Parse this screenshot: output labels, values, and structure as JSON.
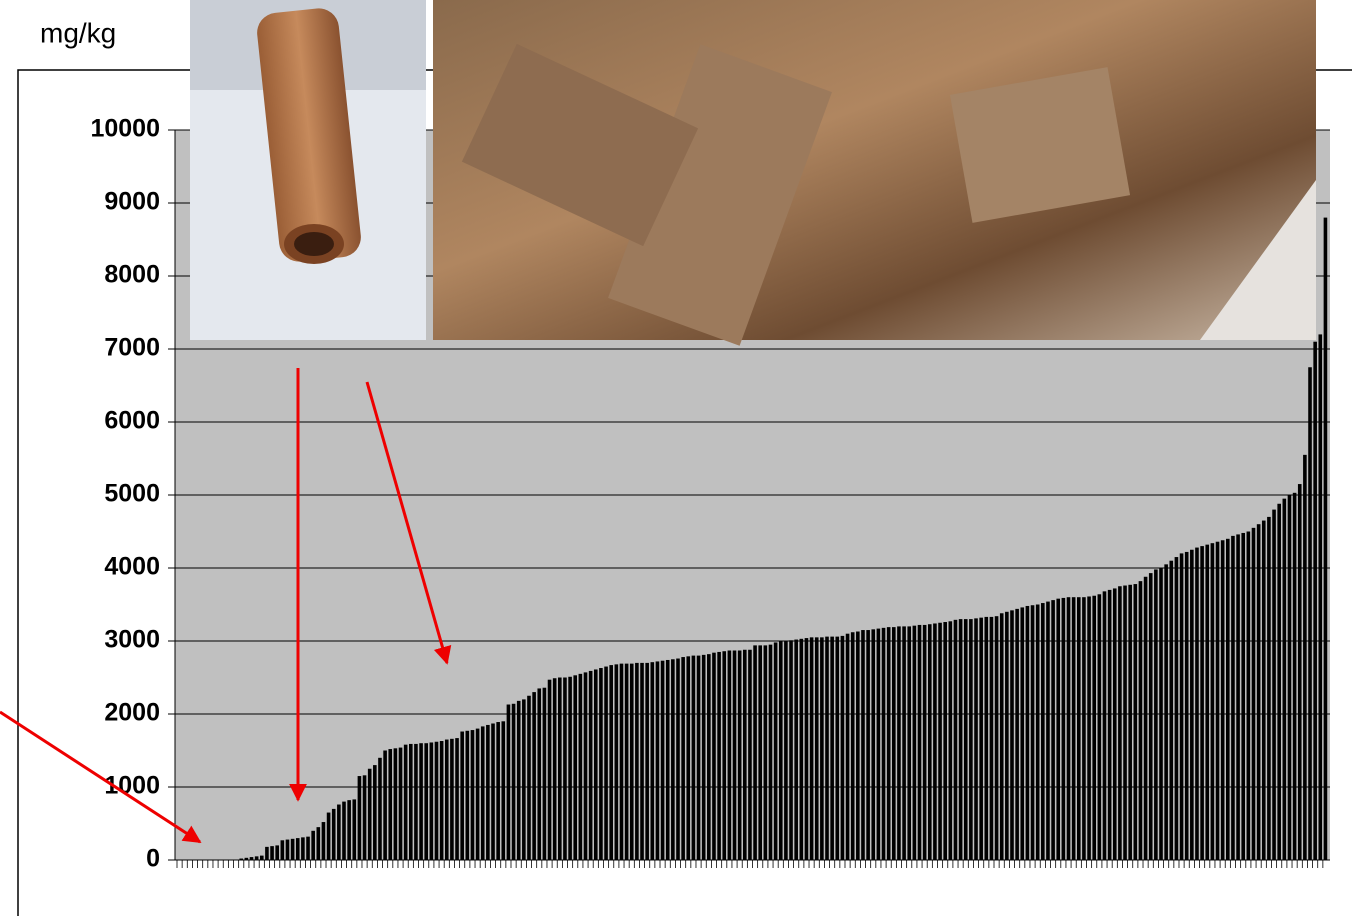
{
  "chart_data": {
    "type": "bar",
    "y_label": "mg/kg",
    "values": [
      0,
      0,
      0,
      0,
      0,
      0,
      0,
      0,
      0,
      0,
      0,
      0,
      20,
      30,
      40,
      50,
      60,
      180,
      190,
      200,
      270,
      280,
      290,
      300,
      310,
      320,
      400,
      450,
      520,
      650,
      700,
      760,
      800,
      820,
      830,
      1150,
      1160,
      1250,
      1300,
      1400,
      1500,
      1520,
      1530,
      1540,
      1580,
      1590,
      1590,
      1600,
      1600,
      1610,
      1620,
      1630,
      1650,
      1660,
      1670,
      1760,
      1770,
      1780,
      1800,
      1830,
      1850,
      1870,
      1890,
      1900,
      2130,
      2140,
      2180,
      2200,
      2250,
      2300,
      2350,
      2360,
      2470,
      2490,
      2500,
      2500,
      2510,
      2530,
      2550,
      2570,
      2590,
      2610,
      2630,
      2650,
      2670,
      2680,
      2690,
      2690,
      2690,
      2700,
      2700,
      2700,
      2710,
      2720,
      2730,
      2740,
      2750,
      2760,
      2780,
      2790,
      2800,
      2800,
      2810,
      2820,
      2840,
      2850,
      2860,
      2870,
      2870,
      2870,
      2880,
      2880,
      2940,
      2940,
      2940,
      2950,
      2980,
      3000,
      3000,
      3010,
      3020,
      3030,
      3040,
      3050,
      3050,
      3050,
      3060,
      3060,
      3060,
      3070,
      3100,
      3120,
      3130,
      3150,
      3150,
      3160,
      3170,
      3180,
      3190,
      3190,
      3200,
      3200,
      3200,
      3210,
      3220,
      3220,
      3230,
      3240,
      3250,
      3260,
      3270,
      3290,
      3300,
      3300,
      3300,
      3310,
      3320,
      3330,
      3330,
      3340,
      3380,
      3400,
      3420,
      3440,
      3460,
      3480,
      3490,
      3500,
      3520,
      3540,
      3560,
      3580,
      3590,
      3600,
      3600,
      3600,
      3600,
      3610,
      3620,
      3640,
      3680,
      3700,
      3720,
      3750,
      3760,
      3770,
      3780,
      3820,
      3880,
      3930,
      3980,
      4000,
      4050,
      4100,
      4150,
      4200,
      4220,
      4250,
      4280,
      4300,
      4320,
      4340,
      4360,
      4380,
      4400,
      4440,
      4460,
      4480,
      4500,
      4550,
      4600,
      4650,
      4700,
      4800,
      4880,
      4950,
      5000,
      5030,
      5150,
      5550,
      6750,
      7100,
      7200,
      8800
    ],
    "color": "#000000",
    "ylim": [
      0,
      10000
    ],
    "yticks": [
      0,
      1000,
      2000,
      3000,
      4000,
      5000,
      6000,
      7000,
      8000,
      9000,
      10000
    ],
    "grid": true
  }
}
